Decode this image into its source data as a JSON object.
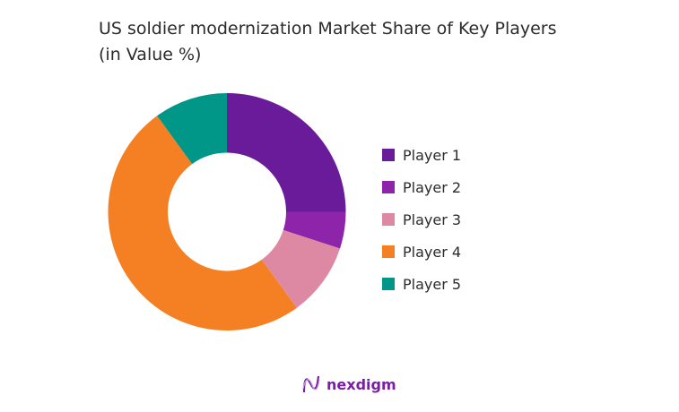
{
  "chart_data": {
    "type": "pie",
    "variant": "donut",
    "title": "US soldier modernization Market Share of Key Players (in Value %)",
    "categories": [
      "Player 1",
      "Player 2",
      "Player 3",
      "Player 4",
      "Player 5"
    ],
    "values": [
      25,
      5,
      10,
      50,
      10
    ],
    "unit": "%",
    "colors": [
      "#6a1b9a",
      "#8e24aa",
      "#de89a3",
      "#f58024",
      "#009688"
    ],
    "legend_position": "right",
    "start": "top",
    "direction": "clockwise"
  },
  "branding": {
    "logo_text": "nexdigm",
    "logo_icon": "nexdigm-wave-logo"
  }
}
